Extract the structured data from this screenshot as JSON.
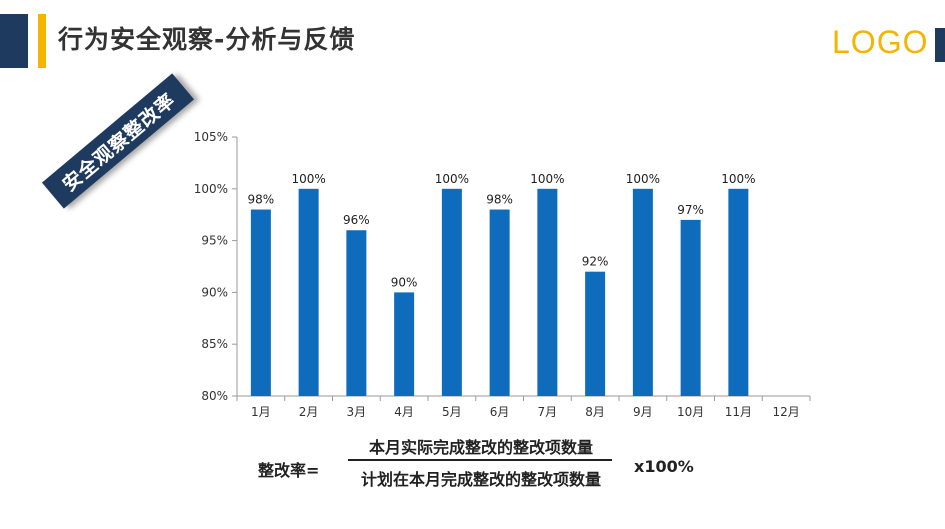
{
  "header": {
    "title": "行为安全观察-分析与反馈",
    "logo": "LOGO"
  },
  "badge": {
    "label": "安全观察整改率"
  },
  "colors": {
    "bar": "#0f6cbd",
    "accent": "#f4b400",
    "navy": "#1f3a5f"
  },
  "chart_data": {
    "type": "bar",
    "categories": [
      "1月",
      "2月",
      "3月",
      "4月",
      "5月",
      "6月",
      "7月",
      "8月",
      "9月",
      "10月",
      "11月",
      "12月"
    ],
    "values": [
      98,
      100,
      96,
      90,
      100,
      98,
      100,
      92,
      100,
      97,
      100,
      null
    ],
    "value_labels": [
      "98%",
      "100%",
      "96%",
      "90%",
      "100%",
      "98%",
      "100%",
      "92%",
      "100%",
      "97%",
      "100%",
      ""
    ],
    "yticks": [
      80,
      85,
      90,
      95,
      100,
      105
    ],
    "ytick_labels": [
      "80%",
      "85%",
      "90%",
      "95%",
      "100%",
      "105%"
    ],
    "ylim": [
      80,
      105
    ],
    "grid": false,
    "title": "",
    "xlabel": "",
    "ylabel": ""
  },
  "formula": {
    "label": "整改率=",
    "numerator": "本月实际完成整改的整改项数量",
    "denominator": "计划在本月完成整改的整改项数量",
    "multiplier": "x100%"
  }
}
